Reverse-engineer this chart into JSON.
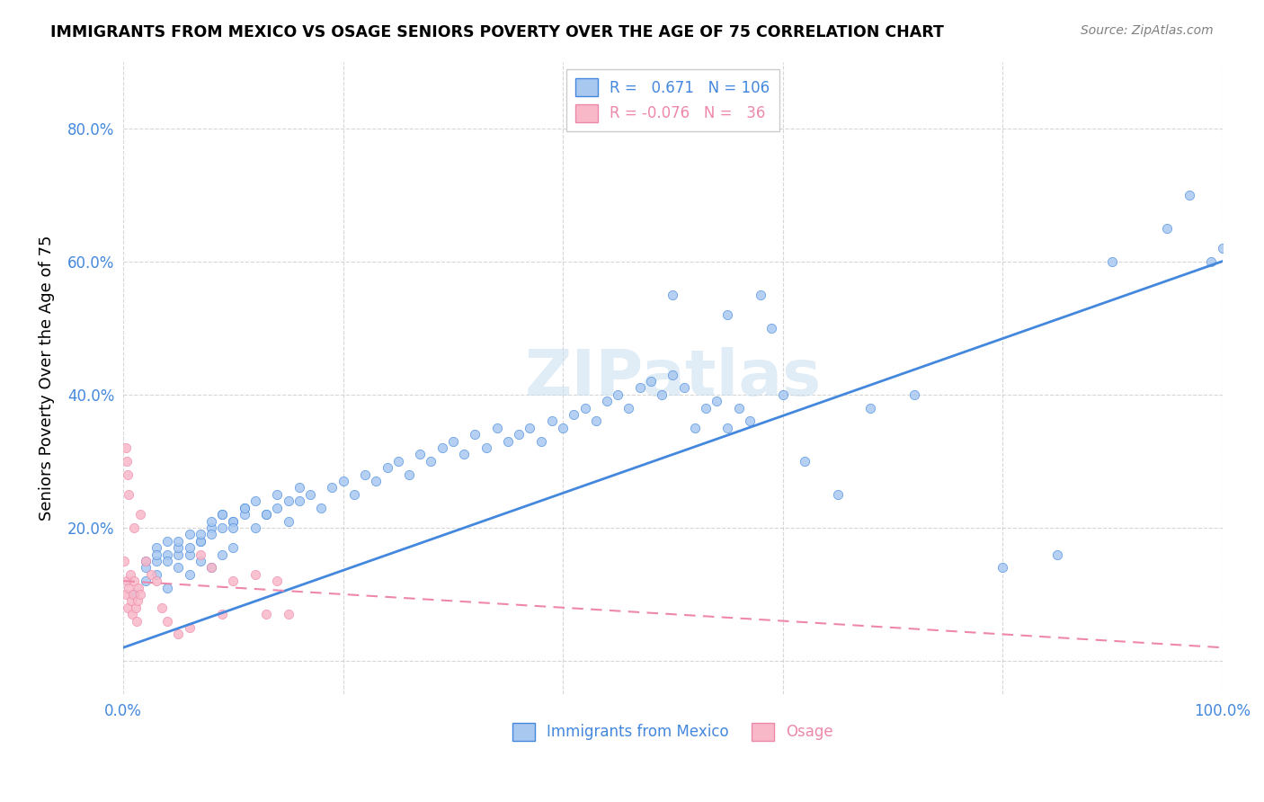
{
  "title": "IMMIGRANTS FROM MEXICO VS OSAGE SENIORS POVERTY OVER THE AGE OF 75 CORRELATION CHART",
  "source": "Source: ZipAtlas.com",
  "ylabel": "Seniors Poverty Over the Age of 75",
  "legend_blue_r": "0.671",
  "legend_blue_n": "106",
  "legend_pink_r": "-0.076",
  "legend_pink_n": "36",
  "legend_blue_label": "Immigrants from Mexico",
  "legend_pink_label": "Osage",
  "blue_color": "#a8c8f0",
  "pink_color": "#f8b8c8",
  "blue_line_color": "#4488dd",
  "pink_line_color": "#ee88aa",
  "watermark": "ZIPatlas",
  "xlim": [
    0,
    1.0
  ],
  "ylim": [
    -0.05,
    0.9
  ],
  "blue_scatter_x": [
    0.02,
    0.03,
    0.04,
    0.05,
    0.06,
    0.07,
    0.08,
    0.09,
    0.1,
    0.11,
    0.01,
    0.02,
    0.03,
    0.04,
    0.05,
    0.06,
    0.07,
    0.08,
    0.09,
    0.1,
    0.02,
    0.03,
    0.04,
    0.05,
    0.06,
    0.07,
    0.08,
    0.09,
    0.1,
    0.11,
    0.12,
    0.13,
    0.14,
    0.15,
    0.16,
    0.17,
    0.18,
    0.19,
    0.2,
    0.21,
    0.22,
    0.23,
    0.24,
    0.25,
    0.26,
    0.27,
    0.28,
    0.29,
    0.3,
    0.31,
    0.32,
    0.33,
    0.34,
    0.35,
    0.36,
    0.37,
    0.38,
    0.39,
    0.4,
    0.41,
    0.42,
    0.43,
    0.44,
    0.45,
    0.46,
    0.47,
    0.48,
    0.49,
    0.5,
    0.51,
    0.52,
    0.53,
    0.54,
    0.55,
    0.56,
    0.57,
    0.58,
    0.59,
    0.6,
    0.62,
    0.65,
    0.68,
    0.72,
    0.8,
    0.85,
    0.9,
    0.95,
    0.97,
    0.99,
    1.0,
    0.03,
    0.04,
    0.05,
    0.06,
    0.07,
    0.08,
    0.09,
    0.1,
    0.11,
    0.12,
    0.13,
    0.14,
    0.15,
    0.16,
    0.5,
    0.55
  ],
  "blue_scatter_y": [
    0.15,
    0.17,
    0.18,
    0.16,
    0.19,
    0.18,
    0.2,
    0.22,
    0.21,
    0.23,
    0.1,
    0.12,
    0.13,
    0.11,
    0.14,
    0.13,
    0.15,
    0.14,
    0.16,
    0.17,
    0.14,
    0.15,
    0.16,
    0.17,
    0.16,
    0.18,
    0.19,
    0.2,
    0.21,
    0.22,
    0.2,
    0.22,
    0.23,
    0.21,
    0.24,
    0.25,
    0.23,
    0.26,
    0.27,
    0.25,
    0.28,
    0.27,
    0.29,
    0.3,
    0.28,
    0.31,
    0.3,
    0.32,
    0.33,
    0.31,
    0.34,
    0.32,
    0.35,
    0.33,
    0.34,
    0.35,
    0.33,
    0.36,
    0.35,
    0.37,
    0.38,
    0.36,
    0.39,
    0.4,
    0.38,
    0.41,
    0.42,
    0.4,
    0.43,
    0.41,
    0.35,
    0.38,
    0.39,
    0.35,
    0.38,
    0.36,
    0.55,
    0.5,
    0.4,
    0.3,
    0.25,
    0.38,
    0.4,
    0.14,
    0.16,
    0.6,
    0.65,
    0.7,
    0.6,
    0.62,
    0.16,
    0.15,
    0.18,
    0.17,
    0.19,
    0.21,
    0.22,
    0.2,
    0.23,
    0.24,
    0.22,
    0.25,
    0.24,
    0.26,
    0.55,
    0.52
  ],
  "pink_scatter_x": [
    0.001,
    0.002,
    0.003,
    0.004,
    0.005,
    0.006,
    0.007,
    0.008,
    0.009,
    0.01,
    0.011,
    0.012,
    0.013,
    0.014,
    0.015,
    0.02,
    0.025,
    0.03,
    0.035,
    0.04,
    0.05,
    0.06,
    0.07,
    0.08,
    0.09,
    0.1,
    0.12,
    0.13,
    0.14,
    0.15,
    0.002,
    0.003,
    0.004,
    0.005,
    0.01,
    0.015
  ],
  "pink_scatter_y": [
    0.15,
    0.1,
    0.12,
    0.08,
    0.11,
    0.13,
    0.09,
    0.07,
    0.1,
    0.12,
    0.08,
    0.06,
    0.09,
    0.11,
    0.1,
    0.15,
    0.13,
    0.12,
    0.08,
    0.06,
    0.04,
    0.05,
    0.16,
    0.14,
    0.07,
    0.12,
    0.13,
    0.07,
    0.12,
    0.07,
    0.32,
    0.3,
    0.28,
    0.25,
    0.2,
    0.22
  ],
  "blue_line_x": [
    0,
    1.0
  ],
  "blue_line_y_start": 0.02,
  "blue_line_y_end": 0.6,
  "pink_line_x": [
    0,
    1.0
  ],
  "pink_line_y_start": 0.12,
  "pink_line_y_end": 0.02
}
